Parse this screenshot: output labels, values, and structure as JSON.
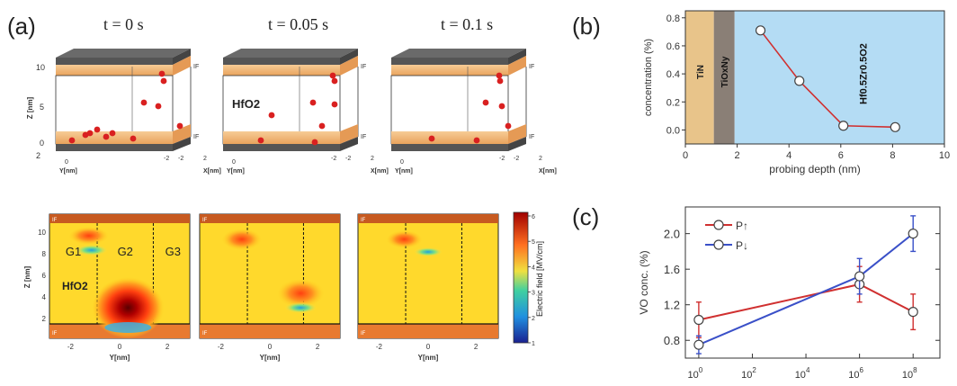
{
  "panel_labels": {
    "a": "(a)",
    "b": "(b)",
    "c": "(c)"
  },
  "panel_a": {
    "times": [
      "t = 0 s",
      "t = 0.05 s",
      "t = 0.1 s"
    ],
    "z_axis_label": "Z [nm]",
    "z_ticks": [
      "10",
      "5",
      "0"
    ],
    "x_axis_label": "X[nm]",
    "y_axis_label": "Y[nm]",
    "box_tick_labels": [
      "2",
      "0",
      "-2",
      "-2",
      "0",
      "2"
    ],
    "interface_label": "IF",
    "oxide_label": "HfO2",
    "colors": {
      "top_electrode": "#555555",
      "interface": "#f2b06a",
      "defect": "#d92020"
    }
  },
  "panel_a_maps": {
    "z_ticks": [
      "10",
      "8",
      "6",
      "4",
      "2"
    ],
    "y_ticks": [
      "-2",
      "0",
      "2"
    ],
    "xlabel": "Y[nm]",
    "ylabel": "Z [nm]",
    "grain_labels": [
      "G1",
      "G2",
      "G3"
    ],
    "oxide_label": "HfO2",
    "interface_label": "IF",
    "colorbar_label": "Electric field [MV/cm]",
    "colorbar_ticks": [
      "6",
      "5",
      "4",
      "3",
      "2",
      "1"
    ]
  },
  "chart_data": [
    {
      "type": "line",
      "panel": "b",
      "title": "",
      "xlabel": "probing depth (nm)",
      "ylabel": "concentration (%)",
      "xlim": [
        0,
        10
      ],
      "ylim": [
        -0.1,
        0.85
      ],
      "xticks": [
        "0",
        "2",
        "4",
        "6",
        "8",
        "10"
      ],
      "yticks": [
        "0.0",
        "0.2",
        "0.4",
        "0.6",
        "0.8"
      ],
      "regions": [
        {
          "label": "TiN",
          "from": 0,
          "to": 1.1,
          "color": "#e8c48a"
        },
        {
          "label": "TiOxNy",
          "from": 1.1,
          "to": 1.9,
          "color": "#8a7f76"
        },
        {
          "label": "Hf0.5Zr0.5O2",
          "from": 1.9,
          "to": 10,
          "color": "#b4dcf4"
        }
      ],
      "series": [
        {
          "x": [
            2.9,
            4.4,
            6.1,
            8.1
          ],
          "y": [
            0.71,
            0.35,
            0.03,
            0.02
          ],
          "color": "#d03030"
        }
      ]
    },
    {
      "type": "line",
      "panel": "c",
      "title": "",
      "xlabel": "",
      "ylabel": "VO conc. (%)",
      "xscale": "log",
      "xlim_exp": [
        -0.5,
        9
      ],
      "ylim": [
        0.6,
        2.3
      ],
      "xticks": [
        "10^0",
        "10^2",
        "10^4",
        "10^6",
        "10^8"
      ],
      "yticks": [
        "0.8",
        "1.2",
        "1.6",
        "2.0"
      ],
      "legend_position": "top-left",
      "series": [
        {
          "name": "P↑",
          "color": "#d03030",
          "x_exp": [
            0,
            6,
            8
          ],
          "y": [
            1.03,
            1.43,
            1.12
          ],
          "err": [
            0.2,
            0.2,
            0.2
          ]
        },
        {
          "name": "P↓",
          "color": "#3a50c8",
          "x_exp": [
            0,
            6,
            8
          ],
          "y": [
            0.75,
            1.52,
            2.0
          ],
          "err": [
            0.1,
            0.2,
            0.2
          ]
        }
      ]
    }
  ]
}
